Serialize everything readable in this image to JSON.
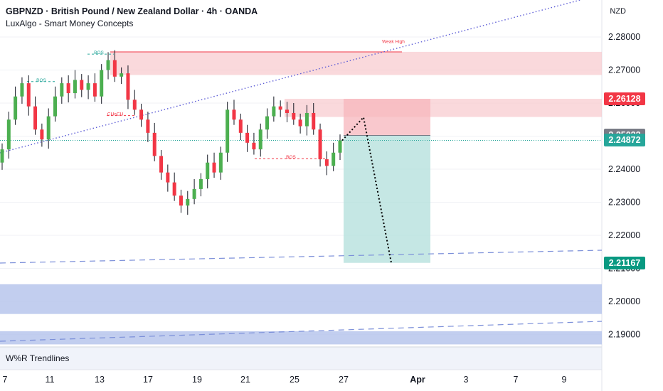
{
  "header": {
    "title": "GBPNZD · British Pound / New Zealand Dollar · 4h · OANDA",
    "indicator": "LuxAlgo - Smart Money Concepts"
  },
  "currency": "NZD",
  "subpane_label": "W%R Trendlines",
  "colors": {
    "bull": "#26a69a",
    "bull_candle": "#4caf50",
    "bear": "#f23645",
    "supply_zone": "#f7c5c9",
    "demand_zone": "#b7c6ec",
    "trendline": "#5b5bd6",
    "target_zone": "#b2dfdb",
    "stop_zone": "#f7b6bc"
  },
  "price_labels": [
    {
      "text": "2.26128",
      "price": 2.26128,
      "color": "#f23645"
    },
    {
      "text": "2.25022",
      "price": 2.25022,
      "color": "#787b86"
    },
    {
      "text": "2.24872",
      "price": 2.24872,
      "color": "#26a69a"
    },
    {
      "text": "2.21167",
      "price": 2.21167,
      "color": "#089981"
    }
  ],
  "annotations": [
    {
      "text": "BOS",
      "date": "Mar 10",
      "price": 2.2665,
      "color": "#26a69a"
    },
    {
      "text": "BOS",
      "date": "Mar 13",
      "price": 2.2748,
      "color": "#26a69a"
    },
    {
      "text": "CHoCH",
      "date": "Mar 14",
      "price": 2.2562,
      "color": "#f23645"
    },
    {
      "text": "BOS",
      "date": "Mar 23",
      "price": 2.2432,
      "color": "#f23645"
    },
    {
      "text": "Weak High",
      "date": "Mar 29",
      "price": 2.2782,
      "color": "#f23645"
    }
  ],
  "chart_data": {
    "type": "candlestick",
    "symbol": "GBPNZD",
    "timeframe": "4h",
    "y_axis": {
      "ticks": [
        2.19,
        2.2,
        2.21,
        2.22,
        2.23,
        2.24,
        2.25,
        2.26,
        2.27,
        2.28
      ],
      "tick_labels": [
        "2.19000",
        "2.20000",
        "2.21000",
        "2.22000",
        "2.23000",
        "2.24000",
        "2.25000",
        "2.26000",
        "2.27000",
        "2.28000"
      ]
    },
    "x_axis": {
      "tick_labels": [
        "7",
        "11",
        "13",
        "17",
        "19",
        "21",
        "25",
        "27",
        "Apr",
        "3",
        "7",
        "9"
      ]
    },
    "close_series_approx": [
      2.246,
      2.255,
      2.262,
      2.266,
      2.259,
      2.252,
      2.249,
      2.256,
      2.262,
      2.266,
      2.263,
      2.267,
      2.264,
      2.266,
      2.262,
      2.27,
      2.273,
      2.268,
      2.269,
      2.261,
      2.258,
      2.255,
      2.251,
      2.244,
      2.239,
      2.236,
      2.232,
      2.229,
      2.231,
      2.234,
      2.237,
      2.242,
      2.239,
      2.245,
      2.258,
      2.255,
      2.251,
      2.248,
      2.246,
      2.252,
      2.256,
      2.259,
      2.258,
      2.257,
      2.255,
      2.253,
      2.257,
      2.252,
      2.243,
      2.241,
      2.245,
      2.2487
    ],
    "zones": [
      {
        "kind": "supply",
        "top": 2.2755,
        "bottom": 2.2685
      },
      {
        "kind": "supply",
        "top": 2.2613,
        "bottom": 2.2558
      },
      {
        "kind": "demand",
        "top": 2.2052,
        "bottom": 2.1962
      },
      {
        "kind": "demand",
        "top": 2.191,
        "bottom": 2.187
      }
    ],
    "position": {
      "entry": 2.25022,
      "stop": 2.26128,
      "target": 2.21167,
      "current": 2.24872
    },
    "projection_path": [
      2.2487,
      2.2557,
      2.2117
    ],
    "last_price": 2.24872
  }
}
